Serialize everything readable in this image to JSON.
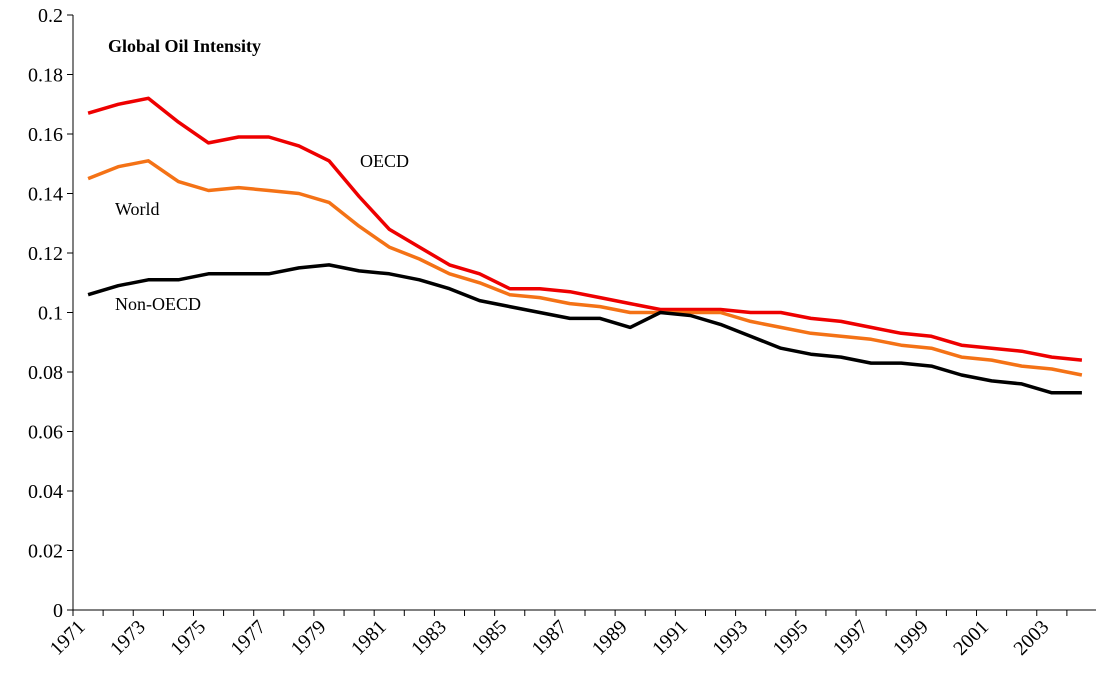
{
  "chart_data": {
    "type": "line",
    "title": "Global Oil Intensity",
    "categories": [
      "1971",
      null,
      "1973",
      null,
      "1975",
      null,
      "1977",
      null,
      "1979",
      null,
      "1981",
      null,
      "1983",
      null,
      "1985",
      null,
      "1987",
      null,
      "1989",
      null,
      "1991",
      null,
      "1993",
      null,
      "1995",
      null,
      "1997",
      null,
      "1999",
      null,
      "2001",
      null,
      "2003",
      null
    ],
    "series": [
      {
        "name": "OECD",
        "color": "#ee0000",
        "values": [
          0.167,
          0.17,
          0.172,
          0.164,
          0.157,
          0.159,
          0.159,
          0.156,
          0.151,
          0.139,
          0.128,
          0.122,
          0.116,
          0.113,
          0.108,
          0.108,
          0.107,
          0.105,
          0.103,
          0.101,
          0.101,
          0.101,
          0.1,
          0.1,
          0.098,
          0.097,
          0.095,
          0.093,
          0.092,
          0.089,
          0.088,
          0.087,
          0.085,
          0.084
        ]
      },
      {
        "name": "World",
        "color": "#f47216",
        "values": [
          0.145,
          0.149,
          0.151,
          0.144,
          0.141,
          0.142,
          0.141,
          0.14,
          0.137,
          0.129,
          0.122,
          0.118,
          0.113,
          0.11,
          0.106,
          0.105,
          0.103,
          0.102,
          0.1,
          0.1,
          0.1,
          0.1,
          0.097,
          0.095,
          0.093,
          0.092,
          0.091,
          0.089,
          0.088,
          0.085,
          0.084,
          0.082,
          0.081,
          0.079
        ]
      },
      {
        "name": "Non-OECD",
        "color": "#000000",
        "values": [
          0.106,
          0.109,
          0.111,
          0.111,
          0.113,
          0.113,
          0.113,
          0.115,
          0.116,
          0.114,
          0.113,
          0.111,
          0.108,
          0.104,
          0.102,
          0.1,
          0.098,
          0.098,
          0.095,
          0.1,
          0.099,
          0.096,
          0.092,
          0.088,
          0.086,
          0.085,
          0.083,
          0.083,
          0.082,
          0.079,
          0.077,
          0.076,
          0.073,
          0.073
        ]
      }
    ],
    "ylim": [
      0,
      0.2
    ],
    "yticks": [
      0,
      0.02,
      0.04,
      0.06,
      0.08,
      0.1,
      0.12,
      0.14,
      0.16,
      0.18,
      0.2
    ],
    "grid": false
  }
}
